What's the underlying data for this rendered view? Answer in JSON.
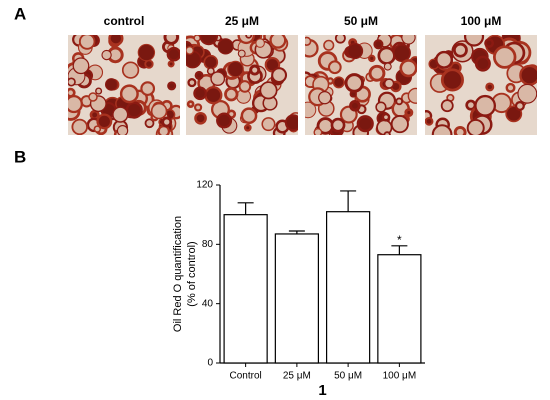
{
  "panel_a": {
    "label": "A",
    "images": [
      "control",
      "25 μM",
      "50 μM",
      "100 μM"
    ]
  },
  "panel_b": {
    "label": "B"
  },
  "chart_data": {
    "type": "bar",
    "ylabel": [
      "Oil Red O quantification",
      "(% of control)"
    ],
    "xlabel": "1",
    "categories": [
      "Control",
      "25 μM",
      "50 μM",
      "100 μM"
    ],
    "values": [
      100,
      87,
      102,
      73
    ],
    "errors": [
      8,
      2,
      14,
      6
    ],
    "color": "#ffffff",
    "ylim": [
      0,
      120
    ],
    "yticks": [
      0,
      40,
      80,
      120
    ],
    "annotations": [
      {
        "category": "100 μM",
        "text": "*"
      }
    ]
  }
}
